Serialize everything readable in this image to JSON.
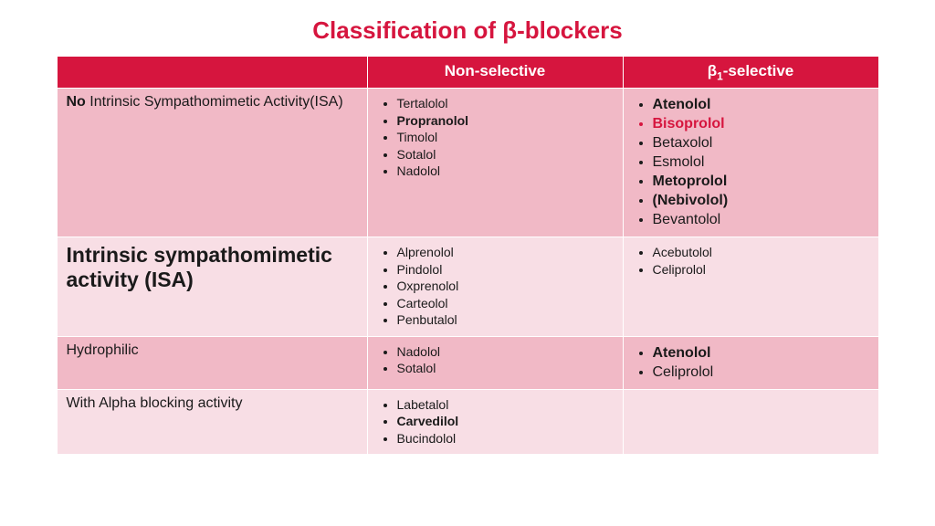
{
  "title": {
    "text": "Classification of β-blockers",
    "color": "#d6153e",
    "fontsize": 26
  },
  "layout": {
    "col_widths": [
      "340px",
      "280px",
      "280px"
    ]
  },
  "colors": {
    "header_bg": "#d6153e",
    "header_fg": "#ffffff",
    "row_alt_a": "#f1b9c6",
    "row_alt_b": "#f8dee5",
    "text": "#1a1a1a",
    "highlight": "#d6153e"
  },
  "headers": {
    "col1": "",
    "col2": "Non-selective",
    "col3_pre": "β",
    "col3_sub": "1",
    "col3_post": "-selective"
  },
  "rows": [
    {
      "bg": "#f1b9c6",
      "label_parts": [
        {
          "text": "No",
          "bold": true
        },
        {
          "text": " Intrinsic Sympathomimetic Activity(ISA)",
          "bold": false
        }
      ],
      "label_fontsize": 16,
      "col2_fontsize": 14,
      "col3_fontsize": 16,
      "col2": [
        {
          "text": "Tertalolol"
        },
        {
          "text": "Propranolol",
          "bold": true
        },
        {
          "text": "Timolol"
        },
        {
          "text": "Sotalol"
        },
        {
          "text": "Nadolol"
        }
      ],
      "col3": [
        {
          "text": "Atenolol",
          "bold": true
        },
        {
          "text": "Bisoprolol",
          "bold": true,
          "color": "#d6153e"
        },
        {
          "text": "Betaxolol"
        },
        {
          "text": "Esmolol"
        },
        {
          "text": "Metoprolol",
          "bold": true
        },
        {
          "text": "(Nebivolol)",
          "bold": true
        },
        {
          "text": "Bevantolol"
        }
      ]
    },
    {
      "bg": "#f8dee5",
      "label_parts": [
        {
          "text": "Intrinsic sympathomimetic activity (ISA)",
          "bold": true
        }
      ],
      "label_fontsize": 23,
      "col2_fontsize": 14,
      "col3_fontsize": 14,
      "col2": [
        {
          "text": "Alprenolol"
        },
        {
          "text": "Pindolol"
        },
        {
          "text": "Oxprenolol"
        },
        {
          "text": "Carteolol"
        },
        {
          "text": "Penbutalol"
        }
      ],
      "col3": [
        {
          "text": "Acebutolol"
        },
        {
          "text": "Celiprolol"
        }
      ]
    },
    {
      "bg": "#f1b9c6",
      "label_parts": [
        {
          "text": "Hydrophilic",
          "bold": false
        }
      ],
      "label_fontsize": 16,
      "col2_fontsize": 14,
      "col3_fontsize": 16,
      "col2": [
        {
          "text": "Nadolol"
        },
        {
          "text": "Sotalol"
        }
      ],
      "col3": [
        {
          "text": "Atenolol",
          "bold": true
        },
        {
          "text": "Celiprolol"
        }
      ]
    },
    {
      "bg": "#f8dee5",
      "label_parts": [
        {
          "text": "With Alpha blocking activity",
          "bold": false
        }
      ],
      "label_fontsize": 16,
      "col2_fontsize": 14,
      "col3_fontsize": 14,
      "col2": [
        {
          "text": "Labetalol"
        },
        {
          "text": "Carvedilol",
          "bold": true
        },
        {
          "text": "Bucindolol"
        }
      ],
      "col3": []
    }
  ]
}
